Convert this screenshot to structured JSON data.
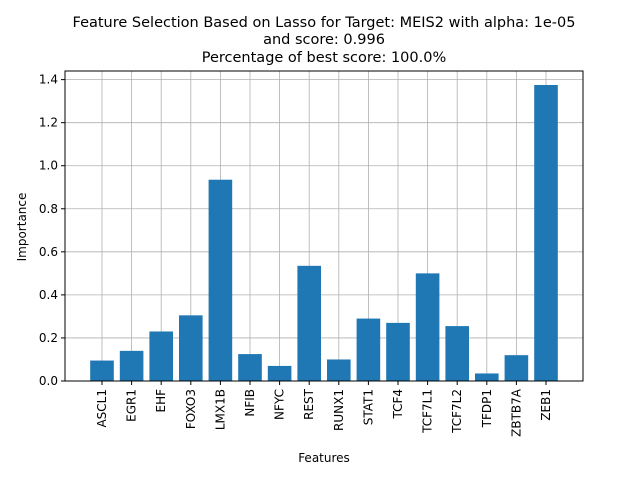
{
  "chart_data": {
    "type": "bar",
    "title_lines": [
      "Feature Selection Based on Lasso for Target: MEIS2 with alpha: 1e-05",
      "and score: 0.996",
      " Percentage of best score: 100.0%"
    ],
    "xlabel": "Features",
    "ylabel": "Importance",
    "categories": [
      "ASCL1",
      "EGR1",
      "EHF",
      "FOXO3",
      "LMX1B",
      "NFIB",
      "NFYC",
      "REST",
      "RUNX1",
      "STAT1",
      "TCF4",
      "TCF7L1",
      "TCF7L2",
      "TFDP1",
      "ZBTB7A",
      "ZEB1"
    ],
    "values": [
      0.095,
      0.14,
      0.23,
      0.305,
      0.935,
      0.125,
      0.07,
      0.535,
      0.1,
      0.29,
      0.27,
      0.5,
      0.255,
      0.035,
      0.12,
      1.375
    ],
    "yticks": [
      "0.0",
      "0.2",
      "0.4",
      "0.6",
      "0.8",
      "1.0",
      "1.2",
      "1.4"
    ],
    "ylim": [
      0,
      1.44
    ],
    "grid": true,
    "bar_color": "#1f77b4"
  }
}
